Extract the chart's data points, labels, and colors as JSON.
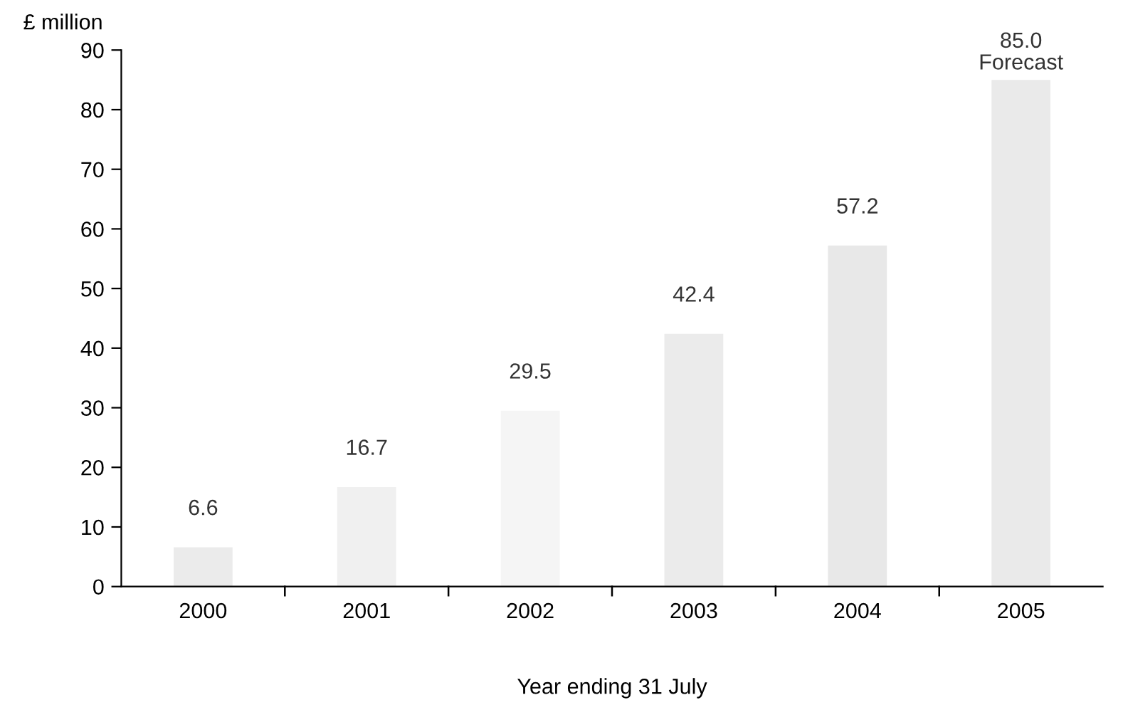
{
  "chart_data": {
    "type": "bar",
    "ylabel": "£ million",
    "xlabel": "Year ending 31 July",
    "categories": [
      "2000",
      "2001",
      "2002",
      "2003",
      "2004",
      "2005"
    ],
    "values": [
      6.6,
      16.7,
      29.5,
      42.4,
      57.2,
      85.0
    ],
    "value_labels": [
      "6.6",
      "16.7",
      "29.5",
      "42.4",
      "57.2",
      "85.0"
    ],
    "colors": [
      "#ebebeb",
      "#f0f0f0",
      "#f5f5f5",
      "#ebebeb",
      "#e8e8e8",
      "#eaeaea"
    ],
    "annotations": [
      {
        "text": "Forecast",
        "x": "2005",
        "y": 85.0
      }
    ],
    "ylim": [
      0,
      90
    ],
    "yticks": [
      0,
      10,
      20,
      30,
      40,
      50,
      60,
      70,
      80,
      90
    ],
    "grid": false,
    "legend": false
  }
}
